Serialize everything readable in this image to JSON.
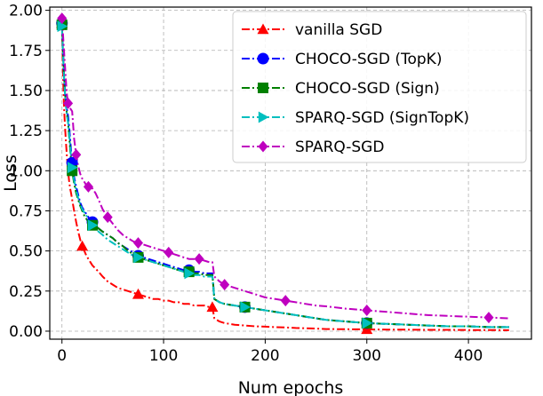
{
  "chart_data": {
    "type": "line",
    "title": "",
    "xlabel": "Num epochs",
    "ylabel": "Loss",
    "xlim": [
      -12,
      462
    ],
    "ylim": [
      -0.05,
      2.02
    ],
    "grid": true,
    "legend_position": "top-right",
    "x_ticks": [
      0,
      100,
      200,
      300,
      400
    ],
    "x_tick_labels": [
      "0",
      "100",
      "200",
      "300",
      "400"
    ],
    "y_ticks": [
      0.0,
      0.25,
      0.5,
      0.75,
      1.0,
      1.25,
      1.5,
      1.75,
      2.0
    ],
    "y_tick_labels": [
      "0.00",
      "0.25",
      "0.50",
      "0.75",
      "1.00",
      "1.25",
      "1.50",
      "1.75",
      "2.00"
    ],
    "series": [
      {
        "name": "vanilla SGD",
        "color": "#ff0000",
        "marker": "triangle-up",
        "marker_every": 15,
        "x": [
          0,
          1,
          2,
          3,
          4,
          5,
          6,
          7,
          8,
          9,
          10,
          12,
          14,
          16,
          18,
          20,
          22,
          24,
          26,
          28,
          30,
          33,
          36,
          40,
          45,
          50,
          55,
          60,
          65,
          70,
          75,
          80,
          85,
          90,
          95,
          100,
          105,
          110,
          115,
          120,
          125,
          130,
          135,
          140,
          145,
          148,
          150,
          155,
          160,
          170,
          180,
          190,
          200,
          210,
          220,
          230,
          240,
          250,
          260,
          280,
          300,
          320,
          340,
          360,
          380,
          400,
          420,
          440
        ],
        "y": [
          1.92,
          1.6,
          1.4,
          1.27,
          1.17,
          1.08,
          1.0,
          0.94,
          0.89,
          0.86,
          0.82,
          0.75,
          0.68,
          0.62,
          0.57,
          0.53,
          0.5,
          0.47,
          0.45,
          0.43,
          0.41,
          0.39,
          0.37,
          0.34,
          0.31,
          0.29,
          0.27,
          0.26,
          0.25,
          0.24,
          0.23,
          0.22,
          0.21,
          0.2,
          0.2,
          0.19,
          0.19,
          0.18,
          0.18,
          0.17,
          0.17,
          0.16,
          0.16,
          0.16,
          0.15,
          0.15,
          0.08,
          0.06,
          0.05,
          0.04,
          0.035,
          0.03,
          0.028,
          0.025,
          0.023,
          0.02,
          0.018,
          0.016,
          0.013,
          0.012,
          0.011,
          0.01,
          0.009,
          0.008,
          0.008,
          0.007,
          0.007,
          0.006
        ]
      },
      {
        "name": "CHOCO-SGD (TopK)",
        "color": "#0000ff",
        "marker": "circle",
        "marker_every": 10,
        "x": [
          0,
          1,
          2,
          3,
          4,
          5,
          6,
          7,
          8,
          9,
          10,
          12,
          14,
          16,
          18,
          20,
          22,
          24,
          26,
          28,
          30,
          33,
          36,
          40,
          45,
          50,
          55,
          60,
          65,
          70,
          75,
          80,
          85,
          90,
          95,
          100,
          105,
          110,
          115,
          120,
          125,
          130,
          135,
          140,
          145,
          148,
          150,
          155,
          160,
          170,
          180,
          190,
          200,
          210,
          220,
          230,
          240,
          250,
          260,
          280,
          300,
          320,
          340,
          360,
          380,
          400,
          420,
          440
        ],
        "y": [
          1.92,
          1.75,
          1.6,
          1.5,
          1.42,
          1.38,
          1.34,
          1.28,
          1.2,
          1.12,
          1.05,
          0.96,
          0.9,
          0.85,
          0.8,
          0.77,
          0.75,
          0.73,
          0.71,
          0.69,
          0.68,
          0.66,
          0.64,
          0.62,
          0.6,
          0.58,
          0.55,
          0.53,
          0.51,
          0.49,
          0.47,
          0.46,
          0.45,
          0.44,
          0.43,
          0.42,
          0.41,
          0.4,
          0.39,
          0.38,
          0.38,
          0.37,
          0.37,
          0.36,
          0.36,
          0.36,
          0.2,
          0.18,
          0.17,
          0.16,
          0.15,
          0.14,
          0.13,
          0.12,
          0.11,
          0.1,
          0.09,
          0.08,
          0.07,
          0.06,
          0.05,
          0.045,
          0.04,
          0.035,
          0.03,
          0.03,
          0.025,
          0.025
        ]
      },
      {
        "name": "CHOCO-SGD (Sign)",
        "color": "#008000",
        "marker": "square",
        "marker_every": 10,
        "x": [
          0,
          1,
          2,
          3,
          4,
          5,
          6,
          7,
          8,
          9,
          10,
          12,
          14,
          16,
          18,
          20,
          22,
          24,
          26,
          28,
          30,
          33,
          36,
          40,
          45,
          50,
          55,
          60,
          65,
          70,
          75,
          80,
          85,
          90,
          95,
          100,
          105,
          110,
          115,
          120,
          125,
          130,
          135,
          140,
          145,
          148,
          150,
          155,
          160,
          170,
          180,
          190,
          200,
          210,
          220,
          230,
          240,
          250,
          260,
          280,
          300,
          320,
          340,
          360,
          380,
          400,
          420,
          440
        ],
        "y": [
          1.91,
          1.74,
          1.6,
          1.48,
          1.4,
          1.35,
          1.3,
          1.22,
          1.14,
          1.06,
          1.0,
          0.92,
          0.86,
          0.82,
          0.78,
          0.75,
          0.72,
          0.7,
          0.68,
          0.67,
          0.66,
          0.65,
          0.64,
          0.62,
          0.6,
          0.58,
          0.55,
          0.53,
          0.5,
          0.48,
          0.46,
          0.45,
          0.44,
          0.43,
          0.42,
          0.41,
          0.4,
          0.39,
          0.38,
          0.37,
          0.37,
          0.36,
          0.36,
          0.35,
          0.35,
          0.35,
          0.2,
          0.18,
          0.17,
          0.16,
          0.15,
          0.14,
          0.13,
          0.12,
          0.11,
          0.1,
          0.09,
          0.08,
          0.07,
          0.06,
          0.05,
          0.045,
          0.04,
          0.035,
          0.03,
          0.03,
          0.025,
          0.025
        ]
      },
      {
        "name": "SPARQ-SGD (SignTopK)",
        "color": "#00bfbf",
        "marker": "triangle-right",
        "marker_every": 10,
        "x": [
          0,
          1,
          2,
          3,
          4,
          5,
          6,
          7,
          8,
          9,
          10,
          12,
          14,
          16,
          18,
          20,
          22,
          24,
          26,
          28,
          30,
          33,
          36,
          40,
          45,
          50,
          55,
          60,
          65,
          70,
          75,
          80,
          85,
          90,
          95,
          100,
          105,
          110,
          115,
          120,
          125,
          130,
          135,
          140,
          145,
          148,
          150,
          155,
          160,
          170,
          180,
          190,
          200,
          210,
          220,
          230,
          240,
          250,
          260,
          280,
          300,
          320,
          340,
          360,
          380,
          400,
          420,
          440
        ],
        "y": [
          1.9,
          1.72,
          1.58,
          1.47,
          1.4,
          1.34,
          1.3,
          1.24,
          1.16,
          1.08,
          1.02,
          0.94,
          0.88,
          0.83,
          0.79,
          0.76,
          0.74,
          0.72,
          0.7,
          0.68,
          0.66,
          0.64,
          0.62,
          0.6,
          0.57,
          0.55,
          0.53,
          0.51,
          0.49,
          0.47,
          0.46,
          0.45,
          0.44,
          0.43,
          0.42,
          0.41,
          0.4,
          0.39,
          0.38,
          0.37,
          0.36,
          0.35,
          0.35,
          0.34,
          0.34,
          0.34,
          0.2,
          0.18,
          0.17,
          0.16,
          0.15,
          0.14,
          0.13,
          0.12,
          0.11,
          0.1,
          0.09,
          0.08,
          0.07,
          0.06,
          0.05,
          0.045,
          0.04,
          0.035,
          0.03,
          0.03,
          0.025,
          0.025
        ]
      },
      {
        "name": "SPARQ-SGD",
        "color": "#bf00bf",
        "marker": "diamond",
        "marker_every": 6,
        "x": [
          0,
          1,
          2,
          3,
          4,
          5,
          6,
          7,
          8,
          9,
          10,
          12,
          14,
          16,
          18,
          20,
          22,
          24,
          26,
          28,
          30,
          33,
          36,
          40,
          45,
          50,
          55,
          60,
          65,
          70,
          75,
          80,
          85,
          90,
          95,
          100,
          105,
          110,
          115,
          120,
          125,
          130,
          135,
          140,
          145,
          148,
          150,
          155,
          160,
          170,
          180,
          190,
          200,
          210,
          220,
          230,
          240,
          250,
          260,
          280,
          300,
          320,
          340,
          360,
          380,
          400,
          420,
          440
        ],
        "y": [
          1.95,
          1.85,
          1.75,
          1.65,
          1.55,
          1.47,
          1.42,
          1.4,
          1.39,
          1.38,
          1.37,
          1.2,
          1.1,
          1.03,
          0.98,
          0.95,
          0.93,
          0.91,
          0.9,
          0.89,
          0.89,
          0.86,
          0.82,
          0.76,
          0.71,
          0.67,
          0.63,
          0.6,
          0.58,
          0.56,
          0.55,
          0.54,
          0.53,
          0.52,
          0.51,
          0.5,
          0.49,
          0.48,
          0.47,
          0.46,
          0.45,
          0.45,
          0.45,
          0.44,
          0.43,
          0.43,
          0.34,
          0.31,
          0.29,
          0.27,
          0.25,
          0.23,
          0.21,
          0.2,
          0.19,
          0.18,
          0.17,
          0.16,
          0.155,
          0.14,
          0.13,
          0.12,
          0.11,
          0.1,
          0.095,
          0.09,
          0.085,
          0.08
        ]
      }
    ]
  }
}
